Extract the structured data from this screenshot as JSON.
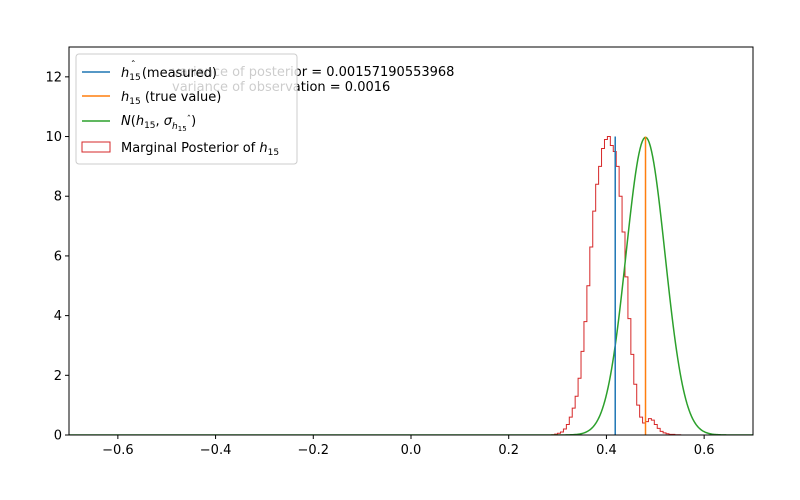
{
  "chart_data": {
    "type": "line",
    "title": "",
    "xlabel": "",
    "ylabel": "",
    "xlim": [
      -0.7,
      0.7
    ],
    "ylim": [
      0,
      13
    ],
    "xticks": [
      -0.6,
      -0.4,
      -0.2,
      0.0,
      0.2,
      0.4,
      0.6
    ],
    "xtick_labels": [
      "−0.6",
      "−0.4",
      "−0.2",
      "0.0",
      "0.2",
      "0.4",
      "0.6"
    ],
    "yticks": [
      0,
      2,
      4,
      6,
      8,
      10,
      12
    ],
    "ytick_labels": [
      "0",
      "2",
      "4",
      "6",
      "8",
      "10",
      "12"
    ],
    "grid": false,
    "legend_position": "top-left",
    "annotations": [
      "variance of posterior  = 0.00157190553968",
      "variance of observation = 0.0016"
    ],
    "series": [
      {
        "name": "h15 (measured)",
        "label_parts": [
          "h",
          "15",
          "̂",
          " (measured)"
        ],
        "type": "vline",
        "x": 0.418,
        "y_range": [
          0,
          10
        ],
        "color": "#1f77b4"
      },
      {
        "name": "h15 (true value)",
        "label_parts": [
          "h",
          "15",
          "",
          " (true value)"
        ],
        "type": "vline",
        "x": 0.48,
        "y_range": [
          0,
          10
        ],
        "color": "#ff7f0e"
      },
      {
        "name": "N(h15, σ h15^)",
        "type": "normal_pdf",
        "mean": 0.48,
        "variance": 0.0016,
        "color": "#2ca02c"
      },
      {
        "name": "Marginal Posterior of h15",
        "type": "step_hist",
        "color": "#d62728",
        "x": [
          0.288,
          0.294,
          0.3,
          0.306,
          0.312,
          0.318,
          0.324,
          0.33,
          0.336,
          0.342,
          0.348,
          0.354,
          0.36,
          0.366,
          0.372,
          0.378,
          0.384,
          0.39,
          0.396,
          0.402,
          0.408,
          0.414,
          0.42,
          0.426,
          0.432,
          0.438,
          0.444,
          0.45,
          0.456,
          0.462,
          0.468,
          0.474,
          0.48,
          0.486,
          0.492,
          0.498,
          0.504,
          0.51,
          0.516,
          0.522,
          0.528,
          0.534,
          0.54,
          0.546,
          0.552,
          0.558
        ],
        "values": [
          0.01,
          0.03,
          0.06,
          0.1,
          0.2,
          0.35,
          0.6,
          0.9,
          1.3,
          1.9,
          2.8,
          3.8,
          5.0,
          6.3,
          7.5,
          8.4,
          9.0,
          9.6,
          9.9,
          10.0,
          9.7,
          9.5,
          9.0,
          8.0,
          6.8,
          5.3,
          3.9,
          2.7,
          1.7,
          1.0,
          0.6,
          0.4,
          0.45,
          0.55,
          0.5,
          0.35,
          0.22,
          0.12,
          0.07,
          0.04,
          0.02,
          0.02,
          0.01,
          0.01,
          0.0,
          0.0
        ]
      }
    ]
  }
}
